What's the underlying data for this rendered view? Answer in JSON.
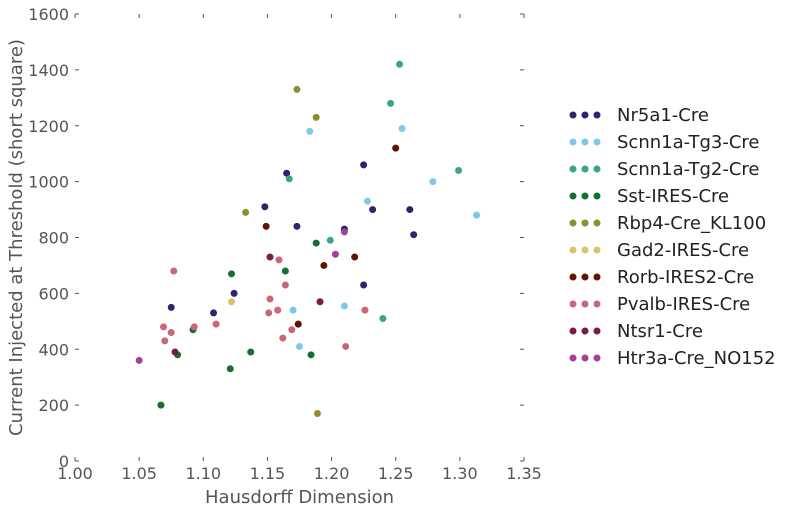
{
  "chart_data": {
    "type": "scatter",
    "xlabel": "Hausdorff Dimension",
    "ylabel": "Current Injected at Threshold (short square)",
    "xlim": [
      1.0,
      1.35
    ],
    "ylim": [
      0,
      1600
    ],
    "x_ticks": [
      "1.00",
      "1.05",
      "1.10",
      "1.15",
      "1.20",
      "1.25",
      "1.30",
      "1.35"
    ],
    "y_ticks": [
      "0",
      "200",
      "400",
      "600",
      "800",
      "1000",
      "1200",
      "1400",
      "1600"
    ],
    "grid": false,
    "legend_position": "right",
    "series": [
      {
        "name": "Nr5a1-Cre",
        "color": "#2d2470",
        "points": [
          [
            1.075,
            550
          ],
          [
            1.108,
            530
          ],
          [
            1.124,
            600
          ],
          [
            1.148,
            910
          ],
          [
            1.165,
            1030
          ],
          [
            1.173,
            840
          ],
          [
            1.21,
            830
          ],
          [
            1.225,
            1060
          ],
          [
            1.225,
            630
          ],
          [
            1.232,
            900
          ],
          [
            1.261,
            900
          ],
          [
            1.264,
            810
          ]
        ]
      },
      {
        "name": "Scnn1a-Tg3-Cre",
        "color": "#7ec8e8",
        "points": [
          [
            1.17,
            540
          ],
          [
            1.175,
            410
          ],
          [
            1.183,
            1180
          ],
          [
            1.21,
            555
          ],
          [
            1.228,
            930
          ],
          [
            1.255,
            1190
          ],
          [
            1.279,
            1000
          ],
          [
            1.313,
            880
          ]
        ]
      },
      {
        "name": "Scnn1a-Tg2-Cre",
        "color": "#3aa38c",
        "points": [
          [
            1.167,
            1010
          ],
          [
            1.199,
            790
          ],
          [
            1.24,
            510
          ],
          [
            1.246,
            1280
          ],
          [
            1.253,
            1420
          ],
          [
            1.299,
            1040
          ]
        ]
      },
      {
        "name": "Sst-IRES-Cre",
        "color": "#13702e",
        "points": [
          [
            1.067,
            200
          ],
          [
            1.08,
            380
          ],
          [
            1.092,
            470
          ],
          [
            1.121,
            330
          ],
          [
            1.122,
            670
          ],
          [
            1.137,
            390
          ],
          [
            1.164,
            680
          ],
          [
            1.184,
            380
          ],
          [
            1.188,
            780
          ]
        ]
      },
      {
        "name": "Rbp4-Cre_KL100",
        "color": "#8e8e2a",
        "points": [
          [
            1.133,
            890
          ],
          [
            1.173,
            1330
          ],
          [
            1.188,
            1230
          ],
          [
            1.189,
            170
          ]
        ]
      },
      {
        "name": "Gad2-IRES-Cre",
        "color": "#dcc26e",
        "points": [
          [
            1.122,
            570
          ]
        ]
      },
      {
        "name": "Rorb-IRES2-Cre",
        "color": "#5e1400",
        "points": [
          [
            1.149,
            840
          ],
          [
            1.174,
            490
          ],
          [
            1.194,
            700
          ],
          [
            1.218,
            730
          ],
          [
            1.25,
            1120
          ]
        ]
      },
      {
        "name": "Pvalb-IRES-Cre",
        "color": "#cc6677",
        "points": [
          [
            1.069,
            480
          ],
          [
            1.07,
            430
          ],
          [
            1.075,
            460
          ],
          [
            1.077,
            680
          ],
          [
            1.093,
            480
          ],
          [
            1.11,
            490
          ],
          [
            1.151,
            530
          ],
          [
            1.152,
            580
          ],
          [
            1.158,
            540
          ],
          [
            1.159,
            720
          ],
          [
            1.162,
            440
          ],
          [
            1.164,
            630
          ],
          [
            1.169,
            470
          ],
          [
            1.211,
            410
          ],
          [
            1.226,
            540
          ]
        ]
      },
      {
        "name": "Ntsr1-Cre",
        "color": "#761b4e",
        "points": [
          [
            1.078,
            390
          ],
          [
            1.152,
            730
          ],
          [
            1.191,
            570
          ]
        ]
      },
      {
        "name": "Htr3a-Cre_NO152",
        "color": "#aa3e9a",
        "points": [
          [
            1.05,
            360
          ],
          [
            1.203,
            740
          ],
          [
            1.21,
            820
          ]
        ]
      }
    ]
  }
}
